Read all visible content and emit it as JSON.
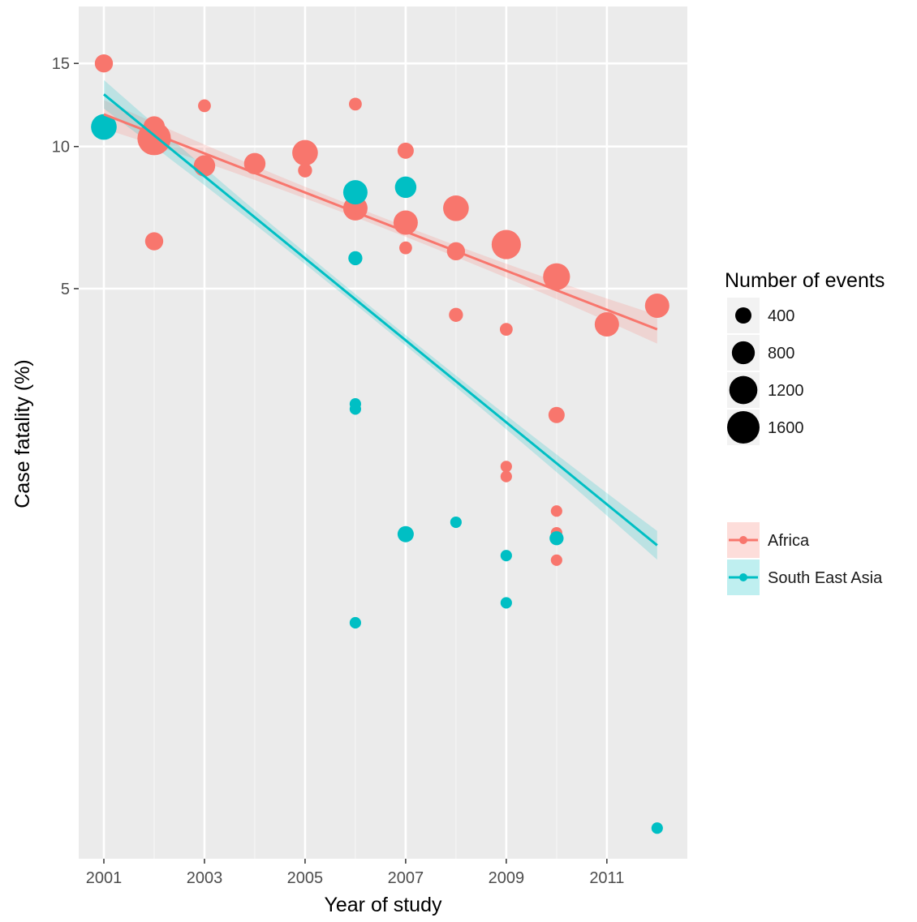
{
  "chart_data": {
    "type": "scatter",
    "xlabel": "Year of study",
    "ylabel": "Case fatality (%)",
    "y_scale": "log",
    "xlim": [
      2000.5,
      2012.6
    ],
    "ylim": [
      0.31,
      19.8
    ],
    "x_ticks": [
      2001,
      2003,
      2005,
      2007,
      2009,
      2011
    ],
    "x_tick_labels": [
      "2001",
      "2003",
      "2005",
      "2007",
      "2009",
      "2011"
    ],
    "y_ticks": [
      5,
      10,
      15
    ],
    "y_tick_labels": [
      "5",
      "10",
      "15"
    ],
    "grid": true,
    "size_legend": {
      "title": "Number of events",
      "entries": [
        {
          "label": "400",
          "value": 400
        },
        {
          "label": "800",
          "value": 800
        },
        {
          "label": "1200",
          "value": 1200
        },
        {
          "label": "1600",
          "value": 1600
        }
      ]
    },
    "legend_placement": "right",
    "series": [
      {
        "name": "Africa",
        "color": "#F8766D",
        "points": [
          {
            "x": 2001,
            "y": 15.0,
            "n": 500
          },
          {
            "x": 2002,
            "y": 11.0,
            "n": 700
          },
          {
            "x": 2002,
            "y": 10.4,
            "n": 1700
          },
          {
            "x": 2002,
            "y": 6.3,
            "n": 500
          },
          {
            "x": 2003,
            "y": 12.2,
            "n": 250
          },
          {
            "x": 2003,
            "y": 9.1,
            "n": 700
          },
          {
            "x": 2004,
            "y": 9.2,
            "n": 700
          },
          {
            "x": 2005,
            "y": 9.7,
            "n": 1000
          },
          {
            "x": 2005,
            "y": 8.9,
            "n": 300
          },
          {
            "x": 2006,
            "y": 12.3,
            "n": 250
          },
          {
            "x": 2006,
            "y": 7.4,
            "n": 900
          },
          {
            "x": 2007,
            "y": 9.8,
            "n": 400
          },
          {
            "x": 2007,
            "y": 6.9,
            "n": 900
          },
          {
            "x": 2007,
            "y": 6.1,
            "n": 250
          },
          {
            "x": 2008,
            "y": 7.4,
            "n": 1000
          },
          {
            "x": 2008,
            "y": 6.0,
            "n": 500
          },
          {
            "x": 2008,
            "y": 4.4,
            "n": 300
          },
          {
            "x": 2009,
            "y": 6.2,
            "n": 1300
          },
          {
            "x": 2009,
            "y": 4.1,
            "n": 250
          },
          {
            "x": 2009,
            "y": 2.1,
            "n": 200
          },
          {
            "x": 2009,
            "y": 2.0,
            "n": 200
          },
          {
            "x": 2010,
            "y": 5.3,
            "n": 1100
          },
          {
            "x": 2010,
            "y": 2.7,
            "n": 400
          },
          {
            "x": 2010,
            "y": 1.69,
            "n": 200
          },
          {
            "x": 2010,
            "y": 1.52,
            "n": 200
          },
          {
            "x": 2010,
            "y": 1.33,
            "n": 200
          },
          {
            "x": 2011,
            "y": 4.2,
            "n": 900
          },
          {
            "x": 2012,
            "y": 4.6,
            "n": 900
          }
        ],
        "trend": {
          "x": [
            2001,
            2012
          ],
          "y": [
            11.7,
            4.1
          ]
        }
      },
      {
        "name": "South East Asia",
        "color": "#00BFC4",
        "points": [
          {
            "x": 2001,
            "y": 11.0,
            "n": 1000
          },
          {
            "x": 2006,
            "y": 8.0,
            "n": 900
          },
          {
            "x": 2006,
            "y": 5.8,
            "n": 300
          },
          {
            "x": 2006,
            "y": 2.85,
            "n": 200
          },
          {
            "x": 2006,
            "y": 2.78,
            "n": 200
          },
          {
            "x": 2006,
            "y": 0.98,
            "n": 200
          },
          {
            "x": 2007,
            "y": 8.2,
            "n": 700
          },
          {
            "x": 2007,
            "y": 1.51,
            "n": 400
          },
          {
            "x": 2008,
            "y": 1.6,
            "n": 200
          },
          {
            "x": 2009,
            "y": 1.36,
            "n": 200
          },
          {
            "x": 2009,
            "y": 1.08,
            "n": 200
          },
          {
            "x": 2010,
            "y": 1.48,
            "n": 300
          },
          {
            "x": 2012,
            "y": 0.36,
            "n": 200
          }
        ],
        "trend": {
          "x": [
            2001,
            2012
          ],
          "y": [
            12.9,
            1.43
          ]
        }
      }
    ]
  }
}
